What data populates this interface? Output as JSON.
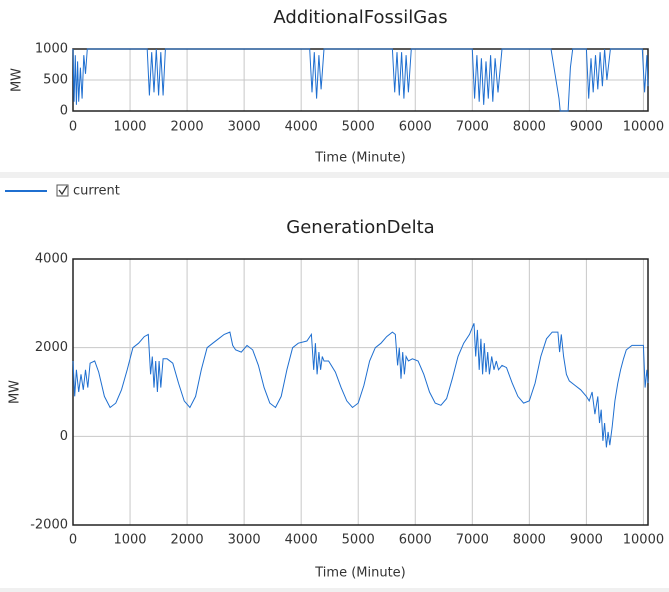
{
  "chart_data": [
    {
      "type": "line",
      "title": "AdditionalFossilGas",
      "xlabel": "Time (Minute)",
      "ylabel": "MW",
      "x": [
        0,
        20,
        40,
        60,
        80,
        100,
        130,
        160,
        190,
        220,
        250,
        300,
        1300,
        1340,
        1380,
        1420,
        1460,
        1500,
        1540,
        1580,
        1620,
        1680,
        4150,
        4190,
        4230,
        4270,
        4310,
        4350,
        4400,
        5600,
        5640,
        5680,
        5720,
        5760,
        5800,
        5840,
        5880,
        5930,
        7000,
        7040,
        7080,
        7120,
        7160,
        7200,
        7240,
        7280,
        7320,
        7360,
        7400,
        7450,
        7520,
        8380,
        8450,
        8520,
        8540,
        8680,
        8720,
        8760,
        9000,
        9040,
        9080,
        9120,
        9160,
        9200,
        9240,
        9280,
        9320,
        9360,
        9420,
        9500,
        9980,
        10020,
        10060,
        10080
      ],
      "series": [
        {
          "name": "current",
          "color": "#1f6fd0",
          "values": [
            1000,
            150,
            900,
            100,
            800,
            150,
            700,
            200,
            900,
            600,
            1000,
            1000,
            1000,
            250,
            950,
            300,
            1000,
            250,
            950,
            250,
            1000,
            1000,
            1000,
            300,
            950,
            200,
            900,
            350,
            1000,
            1000,
            300,
            950,
            250,
            950,
            200,
            900,
            300,
            1000,
            1000,
            200,
            900,
            150,
            850,
            100,
            800,
            200,
            900,
            150,
            850,
            300,
            1000,
            1000,
            600,
            200,
            0,
            0,
            700,
            1000,
            1000,
            200,
            850,
            300,
            900,
            350,
            950,
            400,
            1000,
            500,
            1000,
            1000,
            1000,
            300,
            900,
            400
          ]
        }
      ],
      "xlim": [
        0,
        10080
      ],
      "xticks": [
        0,
        1000,
        2000,
        3000,
        4000,
        5000,
        6000,
        7000,
        8000,
        9000,
        10000
      ],
      "ylim": [
        0,
        1000
      ],
      "yticks": [
        0,
        500,
        1000
      ],
      "grid": true
    },
    {
      "type": "line",
      "title": "GenerationDelta",
      "xlabel": "Time (Minute)",
      "ylabel": "MW",
      "color": "#1f6fd0",
      "x": [
        0,
        30,
        60,
        100,
        140,
        180,
        220,
        260,
        300,
        380,
        450,
        550,
        650,
        750,
        850,
        950,
        1050,
        1150,
        1250,
        1320,
        1360,
        1390,
        1420,
        1450,
        1480,
        1510,
        1540,
        1580,
        1650,
        1750,
        1850,
        1950,
        2050,
        2150,
        2250,
        2350,
        2450,
        2550,
        2650,
        2750,
        2800,
        2850,
        2950,
        3050,
        3150,
        3250,
        3350,
        3450,
        3550,
        3650,
        3750,
        3850,
        3950,
        4100,
        4180,
        4220,
        4250,
        4280,
        4310,
        4340,
        4370,
        4400,
        4480,
        4600,
        4700,
        4800,
        4900,
        5000,
        5100,
        5200,
        5300,
        5400,
        5500,
        5600,
        5650,
        5690,
        5720,
        5750,
        5780,
        5810,
        5840,
        5880,
        5950,
        6050,
        6150,
        6250,
        6350,
        6450,
        6550,
        6650,
        6750,
        6850,
        6950,
        7030,
        7060,
        7090,
        7120,
        7150,
        7180,
        7210,
        7240,
        7270,
        7300,
        7340,
        7380,
        7420,
        7460,
        7520,
        7600,
        7700,
        7800,
        7900,
        8000,
        8100,
        8200,
        8300,
        8400,
        8500,
        8530,
        8560,
        8600,
        8650,
        8700,
        8800,
        8900,
        9000,
        9050,
        9100,
        9150,
        9200,
        9230,
        9260,
        9290,
        9320,
        9350,
        9380,
        9410,
        9450,
        9500,
        9550,
        9600,
        9650,
        9700,
        9800,
        9900,
        10000,
        10030,
        10060,
        10080
      ],
      "values": [
        1700,
        900,
        1500,
        1000,
        1400,
        1050,
        1500,
        1100,
        1650,
        1700,
        1450,
        900,
        650,
        750,
        1050,
        1500,
        2000,
        2100,
        2250,
        2300,
        1400,
        1800,
        1100,
        1700,
        1000,
        1700,
        1100,
        1750,
        1750,
        1650,
        1200,
        800,
        650,
        900,
        1500,
        2000,
        2100,
        2200,
        2300,
        2350,
        2050,
        1950,
        1900,
        2050,
        1950,
        1600,
        1100,
        750,
        650,
        900,
        1500,
        2000,
        2100,
        2150,
        2300,
        1500,
        2100,
        1400,
        1900,
        1500,
        1800,
        1700,
        1700,
        1450,
        1100,
        800,
        650,
        750,
        1150,
        1700,
        2000,
        2100,
        2250,
        2350,
        2300,
        1600,
        2000,
        1300,
        1900,
        1400,
        1800,
        1700,
        1750,
        1700,
        1400,
        1000,
        750,
        700,
        850,
        1300,
        1800,
        2100,
        2300,
        2550,
        1800,
        2400,
        1500,
        2200,
        1400,
        2100,
        1450,
        1900,
        1400,
        1800,
        1500,
        1700,
        1500,
        1600,
        1550,
        1200,
        900,
        750,
        800,
        1200,
        1800,
        2200,
        2350,
        2350,
        1900,
        2300,
        1800,
        1400,
        1250,
        1150,
        1050,
        900,
        800,
        1000,
        500,
        900,
        300,
        600,
        -100,
        300,
        -250,
        100,
        -200,
        200,
        800,
        1200,
        1500,
        1750,
        1950,
        2050,
        2050,
        2050,
        1100,
        1500,
        1200
      ],
      "xlim": [
        0,
        10080
      ],
      "xticks": [
        0,
        1000,
        2000,
        3000,
        4000,
        5000,
        6000,
        7000,
        8000,
        9000,
        10000
      ],
      "ylim": [
        -2000,
        4000
      ],
      "yticks": [
        -2000,
        0,
        2000,
        4000
      ],
      "grid": true
    }
  ]
}
